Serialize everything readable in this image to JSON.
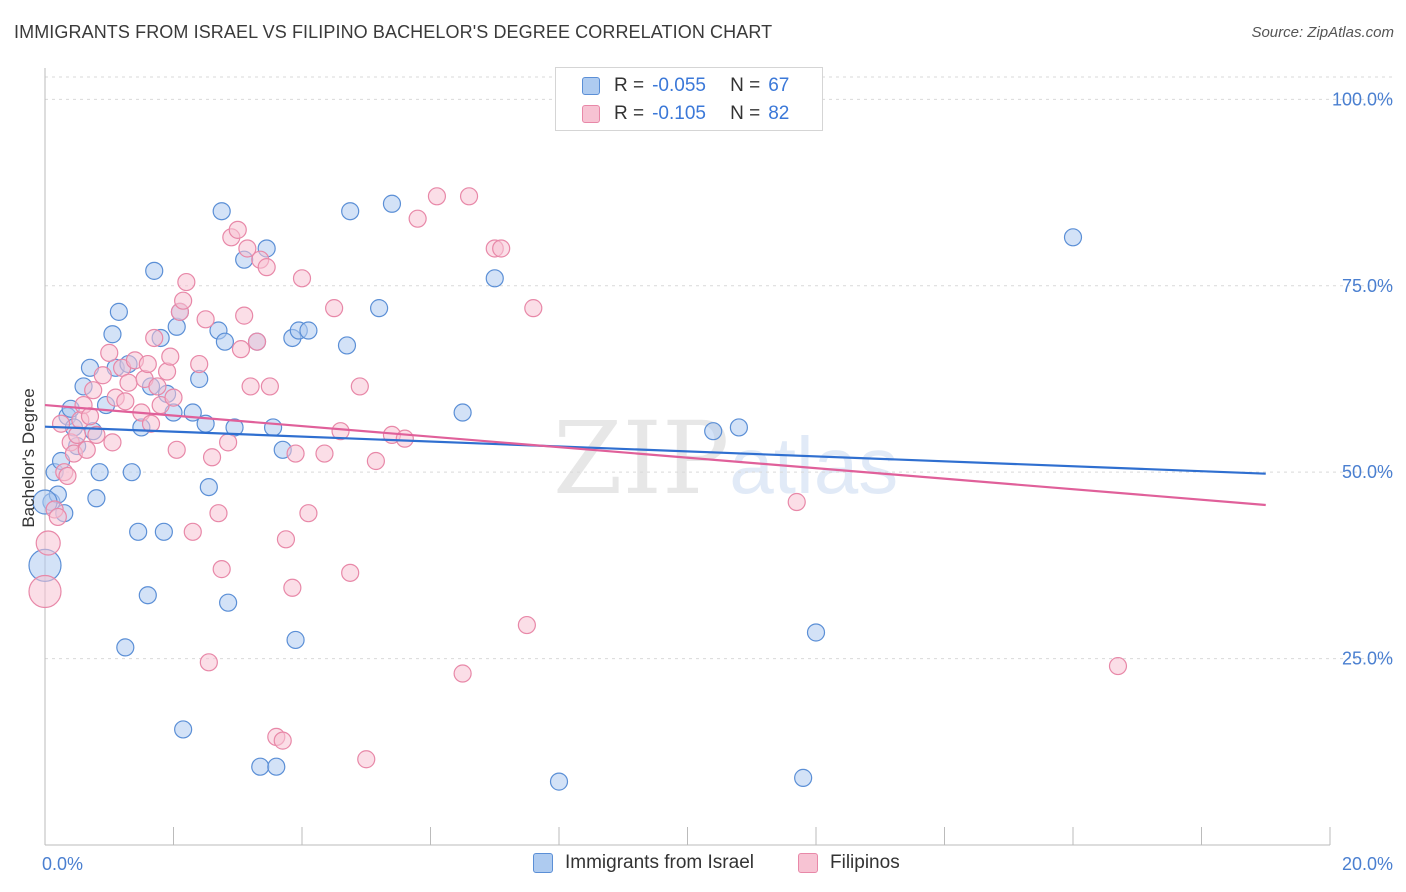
{
  "title": "IMMIGRANTS FROM ISRAEL VS FILIPINO BACHELOR'S DEGREE CORRELATION CHART",
  "source": "Source: ZipAtlas.com",
  "watermark": {
    "zip": "ZIP",
    "atlas": "atlas"
  },
  "legend": {
    "rows": [
      {
        "r_label": "R =",
        "r_value": "-0.055",
        "n_label": "N =",
        "n_value": "67"
      },
      {
        "r_label": "R =",
        "r_value": "-0.105",
        "n_label": "N =",
        "n_value": "82"
      }
    ]
  },
  "colors": {
    "blue_fill": "#aecbf0",
    "blue_stroke": "#5b8fd6",
    "blue_line": "#2f6fd0",
    "pink_fill": "#f7c3d3",
    "pink_stroke": "#e888a8",
    "pink_line": "#e0609a",
    "grid": "#d9d9d9",
    "tick_text": "#4a7fd0"
  },
  "chart_data": {
    "type": "scatter",
    "title": "IMMIGRANTS FROM ISRAEL VS FILIPINO BACHELOR'S DEGREE CORRELATION CHART",
    "xlabel": "",
    "ylabel": "Bachelor's Degree",
    "xlim": [
      0,
      20
    ],
    "ylim": [
      0,
      103
    ],
    "x_ticks": [
      0,
      20
    ],
    "x_tick_labels": [
      "0.0%",
      "20.0%"
    ],
    "y_ticks": [
      25,
      50,
      75,
      100
    ],
    "y_tick_labels": [
      "25.0%",
      "50.0%",
      "75.0%",
      "100.0%"
    ],
    "grid": true,
    "legend_position": "top-center",
    "series": [
      {
        "name": "Immigrants from Israel",
        "color": "#5b8fd6",
        "trend": {
          "x": [
            0,
            19
          ],
          "y": [
            56.1,
            49.8
          ]
        },
        "points": [
          [
            0.0,
            37.5
          ],
          [
            0.1,
            46.0
          ],
          [
            0.15,
            50.0
          ],
          [
            0.2,
            47.0
          ],
          [
            0.25,
            51.5
          ],
          [
            0.3,
            44.5
          ],
          [
            0.35,
            57.5
          ],
          [
            0.4,
            58.5
          ],
          [
            0.45,
            56.0
          ],
          [
            0.5,
            53.5
          ],
          [
            0.6,
            61.5
          ],
          [
            0.7,
            64.0
          ],
          [
            0.75,
            55.5
          ],
          [
            0.8,
            46.5
          ],
          [
            0.85,
            50.0
          ],
          [
            0.95,
            59.0
          ],
          [
            1.05,
            68.5
          ],
          [
            1.1,
            64.0
          ],
          [
            1.15,
            71.5
          ],
          [
            1.25,
            26.5
          ],
          [
            1.3,
            64.5
          ],
          [
            1.35,
            50.0
          ],
          [
            1.45,
            42.0
          ],
          [
            1.5,
            56.0
          ],
          [
            1.6,
            33.5
          ],
          [
            1.65,
            61.5
          ],
          [
            1.7,
            77.0
          ],
          [
            1.8,
            68.0
          ],
          [
            1.85,
            42.0
          ],
          [
            1.9,
            60.5
          ],
          [
            2.0,
            58.0
          ],
          [
            2.05,
            69.5
          ],
          [
            2.1,
            71.5
          ],
          [
            2.15,
            15.5
          ],
          [
            2.3,
            58.0
          ],
          [
            2.4,
            62.5
          ],
          [
            2.5,
            56.5
          ],
          [
            2.55,
            48.0
          ],
          [
            2.7,
            69.0
          ],
          [
            2.75,
            85.0
          ],
          [
            2.8,
            67.5
          ],
          [
            2.85,
            32.5
          ],
          [
            2.95,
            56.0
          ],
          [
            3.1,
            78.5
          ],
          [
            3.3,
            67.5
          ],
          [
            3.35,
            10.5
          ],
          [
            3.45,
            80.0
          ],
          [
            3.55,
            56.0
          ],
          [
            3.6,
            10.5
          ],
          [
            3.7,
            53.0
          ],
          [
            3.85,
            68.0
          ],
          [
            3.9,
            27.5
          ],
          [
            3.95,
            69.0
          ],
          [
            4.1,
            69.0
          ],
          [
            4.7,
            67.0
          ],
          [
            4.75,
            85.0
          ],
          [
            5.2,
            72.0
          ],
          [
            5.4,
            86.0
          ],
          [
            6.5,
            58.0
          ],
          [
            7.0,
            76.0
          ],
          [
            8.0,
            8.5
          ],
          [
            10.4,
            55.5
          ],
          [
            10.8,
            56.0
          ],
          [
            11.8,
            9.0
          ],
          [
            12.0,
            28.5
          ],
          [
            16.0,
            81.5
          ],
          [
            0.0,
            46.0
          ]
        ]
      },
      {
        "name": "Filipinos",
        "color": "#e888a8",
        "trend": {
          "x": [
            0,
            19
          ],
          "y": [
            59.0,
            45.6
          ]
        },
        "points": [
          [
            0.0,
            34.0
          ],
          [
            0.05,
            40.5
          ],
          [
            0.15,
            45.0
          ],
          [
            0.2,
            44.0
          ],
          [
            0.3,
            50.0
          ],
          [
            0.35,
            49.5
          ],
          [
            0.4,
            54.0
          ],
          [
            0.45,
            52.5
          ],
          [
            0.5,
            55.0
          ],
          [
            0.55,
            57.0
          ],
          [
            0.6,
            59.0
          ],
          [
            0.65,
            53.0
          ],
          [
            0.7,
            57.5
          ],
          [
            0.75,
            61.0
          ],
          [
            0.8,
            55.0
          ],
          [
            0.9,
            63.0
          ],
          [
            1.0,
            66.0
          ],
          [
            1.05,
            54.0
          ],
          [
            1.1,
            60.0
          ],
          [
            1.2,
            64.0
          ],
          [
            1.3,
            62.0
          ],
          [
            1.4,
            65.0
          ],
          [
            1.5,
            58.0
          ],
          [
            1.55,
            62.5
          ],
          [
            1.6,
            64.5
          ],
          [
            1.7,
            68.0
          ],
          [
            1.75,
            61.5
          ],
          [
            1.8,
            59.0
          ],
          [
            1.9,
            63.5
          ],
          [
            1.95,
            65.5
          ],
          [
            2.0,
            60.0
          ],
          [
            2.1,
            71.5
          ],
          [
            2.15,
            73.0
          ],
          [
            2.2,
            75.5
          ],
          [
            2.3,
            42.0
          ],
          [
            2.4,
            64.5
          ],
          [
            2.5,
            70.5
          ],
          [
            2.55,
            24.5
          ],
          [
            2.6,
            52.0
          ],
          [
            2.7,
            44.5
          ],
          [
            2.75,
            37.0
          ],
          [
            2.85,
            54.0
          ],
          [
            2.9,
            81.5
          ],
          [
            3.0,
            82.5
          ],
          [
            3.1,
            71.0
          ],
          [
            3.15,
            80.0
          ],
          [
            3.2,
            61.5
          ],
          [
            3.3,
            67.5
          ],
          [
            3.35,
            78.5
          ],
          [
            3.45,
            77.5
          ],
          [
            3.5,
            61.5
          ],
          [
            3.6,
            14.5
          ],
          [
            3.7,
            14.0
          ],
          [
            3.75,
            41.0
          ],
          [
            3.85,
            34.5
          ],
          [
            3.9,
            52.5
          ],
          [
            4.0,
            76.0
          ],
          [
            4.1,
            44.5
          ],
          [
            4.35,
            52.5
          ],
          [
            4.5,
            72.0
          ],
          [
            4.6,
            55.5
          ],
          [
            4.75,
            36.5
          ],
          [
            4.9,
            61.5
          ],
          [
            5.0,
            11.5
          ],
          [
            5.15,
            51.5
          ],
          [
            5.4,
            55.0
          ],
          [
            5.6,
            54.5
          ],
          [
            5.8,
            84.0
          ],
          [
            6.1,
            87.0
          ],
          [
            6.5,
            23.0
          ],
          [
            6.6,
            87.0
          ],
          [
            7.0,
            80.0
          ],
          [
            7.1,
            80.0
          ],
          [
            7.5,
            29.5
          ],
          [
            7.6,
            72.0
          ],
          [
            11.7,
            46.0
          ],
          [
            16.7,
            24.0
          ],
          [
            0.25,
            56.5
          ],
          [
            1.25,
            59.5
          ],
          [
            2.05,
            53.0
          ],
          [
            3.05,
            66.5
          ],
          [
            1.65,
            56.5
          ]
        ]
      }
    ]
  },
  "bottom_legend": [
    {
      "label": "Immigrants from Israel"
    },
    {
      "label": "Filipinos"
    }
  ]
}
